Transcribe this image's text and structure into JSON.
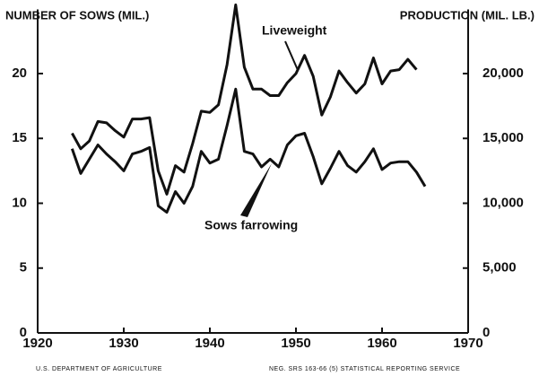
{
  "chart_data": {
    "type": "line",
    "y_axis_label": "NUMBER OF SOWS (MIL.)",
    "y2_axis_label": "PRODUCTION (MIL. LB.)",
    "annotations": [
      "Liveweight",
      "Sows farrowing"
    ],
    "footer": [
      "U.S. DEPARTMENT OF AGRICULTURE",
      "NEG. SRS 163-66 (5)  STATISTICAL REPORTING SERVICE"
    ],
    "x": [
      1924,
      1925,
      1926,
      1927,
      1928,
      1929,
      1930,
      1931,
      1932,
      1933,
      1934,
      1935,
      1936,
      1937,
      1938,
      1939,
      1940,
      1941,
      1942,
      1943,
      1944,
      1945,
      1946,
      1947,
      1948,
      1949,
      1950,
      1951,
      1952,
      1953,
      1954,
      1955,
      1956,
      1957,
      1958,
      1959,
      1960,
      1961,
      1962,
      1963,
      1964,
      1965
    ],
    "xlim": [
      1920,
      1970
    ],
    "xticks": [
      1920,
      1930,
      1940,
      1950,
      1960,
      1970
    ],
    "ylim": [
      0,
      25.5
    ],
    "yticks": [
      0,
      5,
      10,
      15,
      20
    ],
    "y2lim": [
      0,
      25500
    ],
    "y2ticks": [
      0,
      {
        "value": 5000,
        "label": "5,000"
      },
      {
        "value": 10000,
        "label": "10,000"
      },
      {
        "value": 15000,
        "label": "15,000"
      },
      {
        "value": 20000,
        "label": "20,000"
      }
    ],
    "series": [
      {
        "name": "Liveweight",
        "color": "#111111",
        "axis": "y2",
        "values": [
          15400,
          14200,
          14800,
          16300,
          16200,
          15600,
          15100,
          16500,
          16500,
          16600,
          12500,
          10700,
          12900,
          12400,
          14600,
          17100,
          17000,
          17600,
          20700,
          25300,
          20500,
          18800,
          18800,
          18300,
          18300,
          19300,
          20000,
          21400,
          19800,
          16800,
          18200,
          20200,
          19300,
          18500,
          19200,
          21200,
          19200,
          20200,
          20300,
          21100,
          20300,
          null
        ]
      },
      {
        "name": "Sows farrowing",
        "color": "#111111",
        "values": [
          14.2,
          12.3,
          13.4,
          14.5,
          13.8,
          13.2,
          12.5,
          13.8,
          14.0,
          14.3,
          9.8,
          9.3,
          10.9,
          10.0,
          11.3,
          14.0,
          13.1,
          13.4,
          16.0,
          18.8,
          14.0,
          13.8,
          12.8,
          13.4,
          12.8,
          14.5,
          15.2,
          15.4,
          13.6,
          11.5,
          12.7,
          14.0,
          12.9,
          12.4,
          13.2,
          14.2,
          12.6,
          13.1,
          13.2,
          13.2,
          12.4,
          11.3
        ]
      }
    ]
  }
}
